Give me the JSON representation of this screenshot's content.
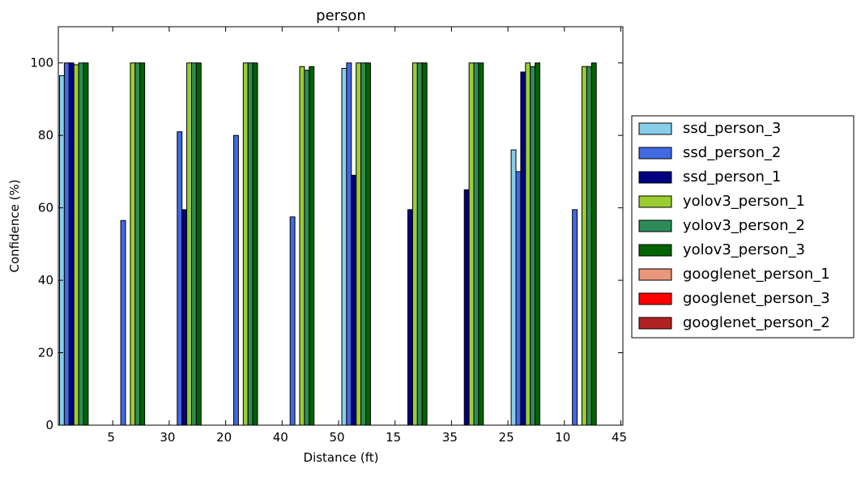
{
  "chart_data": {
    "type": "bar",
    "title": "person",
    "xlabel": "Distance (ft)",
    "ylabel": "Confidence (%)",
    "ylim": [
      0,
      110
    ],
    "yticks": [
      0,
      20,
      40,
      60,
      80,
      100
    ],
    "grid": false,
    "legend_position": "outside right",
    "categories": [
      "5",
      "30",
      "20",
      "40",
      "50",
      "15",
      "35",
      "25",
      "10",
      "45"
    ],
    "series": [
      {
        "name": "ssd_person_3",
        "color": "#87ceeb",
        "values": [
          96.5,
          0,
          0,
          0,
          0,
          98.5,
          0,
          0,
          76,
          0
        ]
      },
      {
        "name": "ssd_person_2",
        "color": "#4169e1",
        "values": [
          100,
          56.5,
          81,
          80,
          57.5,
          100,
          0,
          0,
          70,
          59.5
        ]
      },
      {
        "name": "ssd_person_1",
        "color": "#000080",
        "values": [
          100,
          0,
          59.5,
          0,
          0,
          69,
          59.5,
          65,
          97.5,
          0
        ]
      },
      {
        "name": "yolov3_person_1",
        "color": "#9acd32",
        "values": [
          99.5,
          100,
          100,
          100,
          99,
          100,
          100,
          100,
          100,
          99
        ]
      },
      {
        "name": "yolov3_person_2",
        "color": "#2e8b57",
        "values": [
          100,
          100,
          100,
          100,
          98,
          100,
          100,
          100,
          99,
          99
        ]
      },
      {
        "name": "yolov3_person_3",
        "color": "#006400",
        "values": [
          100,
          100,
          100,
          100,
          99,
          100,
          100,
          100,
          100,
          100
        ]
      },
      {
        "name": "googlenet_person_1",
        "color": "#e9967a",
        "values": [
          0,
          0,
          0,
          0,
          0,
          0,
          0,
          0,
          0,
          0
        ]
      },
      {
        "name": "googlenet_person_3",
        "color": "#ff0000",
        "values": [
          0,
          0,
          0,
          0,
          0,
          0,
          0,
          0,
          0,
          0
        ]
      },
      {
        "name": "googlenet_person_2",
        "color": "#b22222",
        "values": [
          0,
          0,
          0,
          0,
          0,
          0,
          0,
          0,
          0,
          0
        ]
      }
    ]
  }
}
